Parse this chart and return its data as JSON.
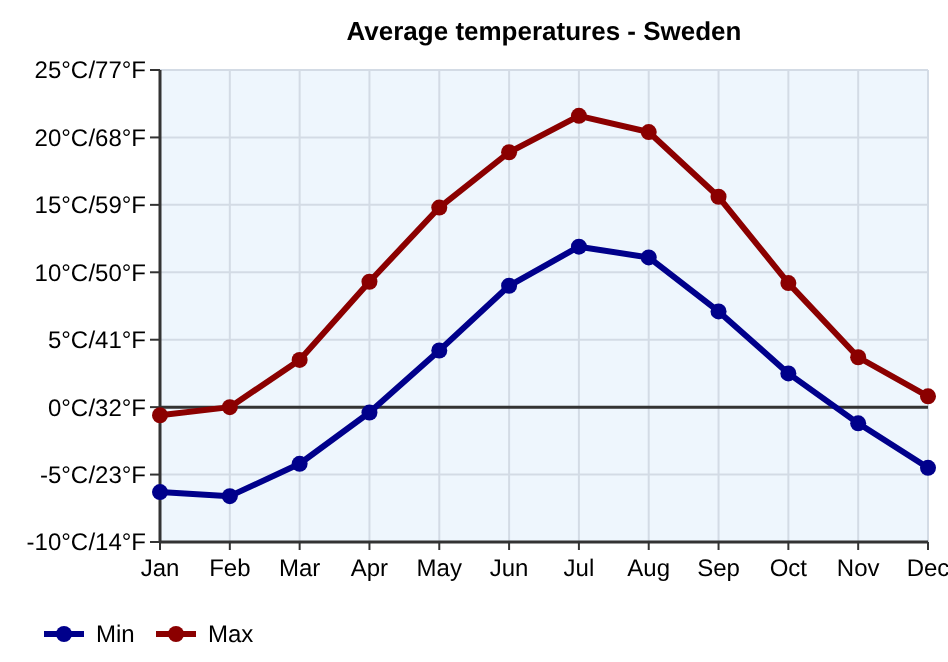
{
  "chart_data": {
    "type": "line",
    "title": "Average temperatures - Sweden",
    "categories": [
      "Jan",
      "Feb",
      "Mar",
      "Apr",
      "May",
      "Jun",
      "Jul",
      "Aug",
      "Sep",
      "Oct",
      "Nov",
      "Dec"
    ],
    "series": [
      {
        "name": "Min",
        "color": "#00008b",
        "values": [
          -6.3,
          -6.6,
          -4.2,
          -0.4,
          4.2,
          9.0,
          11.9,
          11.1,
          7.1,
          2.5,
          -1.2,
          -4.5
        ]
      },
      {
        "name": "Max",
        "color": "#8b0000",
        "values": [
          -0.6,
          0,
          3.5,
          9.3,
          14.8,
          18.9,
          21.6,
          20.4,
          15.6,
          9.2,
          3.7,
          0.8
        ]
      }
    ],
    "ylim": [
      -10,
      25
    ],
    "yticks": [
      {
        "value": -10,
        "label": "-10°C"
      },
      {
        "value": -5,
        "label": "-5°C"
      },
      {
        "value": 0,
        "label": "0°C"
      },
      {
        "value": 5,
        "label": "5°C"
      },
      {
        "value": 10,
        "label": "10°C"
      },
      {
        "value": 15,
        "label": "15°C"
      },
      {
        "value": 20,
        "label": "20°C"
      },
      {
        "value": 25,
        "label": "25°C"
      }
    ],
    "y2lim": [
      14,
      77
    ],
    "y2ticks": [
      {
        "value": 14,
        "label": "/14°F"
      },
      {
        "value": 23,
        "label": "/23°F"
      },
      {
        "value": 32,
        "label": "/32°F"
      },
      {
        "value": 41,
        "label": "/41°F"
      },
      {
        "value": 50,
        "label": "/50°F"
      },
      {
        "value": 59,
        "label": "/59°F"
      },
      {
        "value": 68,
        "label": "/68°F"
      },
      {
        "value": 77,
        "label": "/77°F"
      }
    ],
    "ref_lines": [
      {
        "axis": "y",
        "value": 0,
        "color": "#333333"
      }
    ],
    "grid": true,
    "legend": "bottom left",
    "marker": "circle",
    "line_style": "solid"
  }
}
